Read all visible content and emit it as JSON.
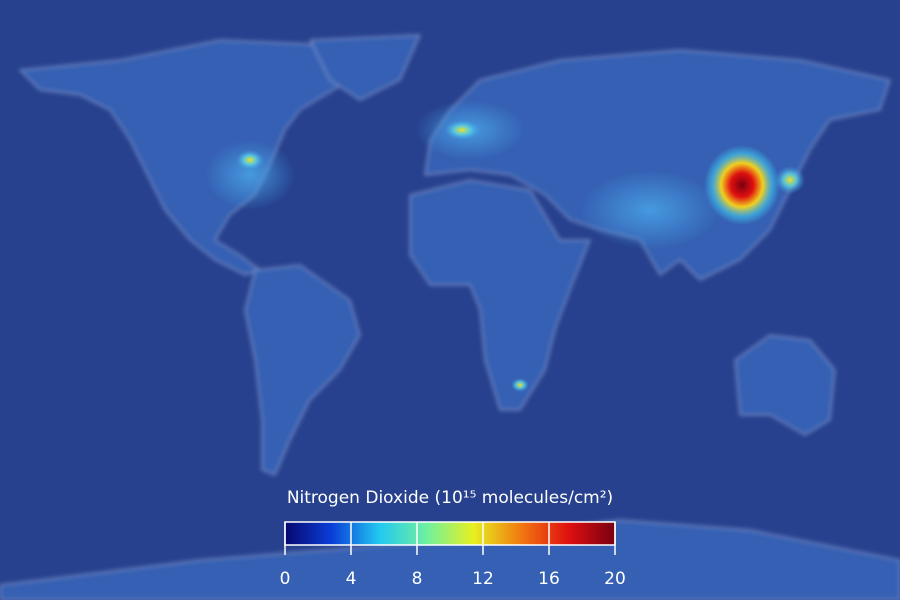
{
  "legend": {
    "title": "Nitrogen Dioxide (10¹⁵ molecules/cm²)",
    "range": [
      0,
      20
    ],
    "ticks": [
      0,
      4,
      8,
      12,
      16,
      20
    ],
    "colors": [
      "#08086e",
      "#0a3fd8",
      "#22c8f0",
      "#6ef0a0",
      "#e8f020",
      "#f07a10",
      "#e01010",
      "#780010"
    ]
  }
}
